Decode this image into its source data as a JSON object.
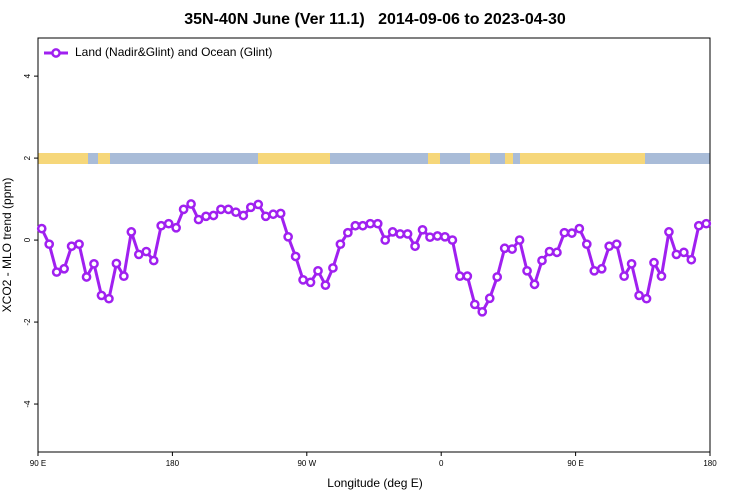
{
  "chart_data": {
    "type": "line",
    "title": "35N-40N June (Ver 11.1)   2014-09-06 to 2023-04-30",
    "x_label": "Longitude (deg E)",
    "y_label": "XCO2 - MLO trend (ppm)",
    "legend": "top-left",
    "xlim": [
      90,
      540
    ],
    "ylim": [
      -5.17,
      4.93
    ],
    "xticks": [
      {
        "value": 90,
        "label": "90 E"
      },
      180,
      {
        "value": 270,
        "label": "90 W"
      },
      {
        "value": 360,
        "label": "0"
      },
      {
        "value": 450,
        "label": "90 E"
      },
      {
        "value": 540,
        "label": "180"
      }
    ],
    "yticks": [
      -4,
      -2,
      0,
      2,
      4
    ],
    "x": [
      92.5,
      97.5,
      102.5,
      107.5,
      112.5,
      117.5,
      122.5,
      127.5,
      132.5,
      137.5,
      142.5,
      147.5,
      152.5,
      157.5,
      162.5,
      167.5,
      172.5,
      177.5,
      182.5,
      187.5,
      192.5,
      197.5,
      202.5,
      207.5,
      212.5,
      217.5,
      222.5,
      227.5,
      232.5,
      237.5,
      242.5,
      247.5,
      252.5,
      257.5,
      262.5,
      267.5,
      272.5,
      277.5,
      282.5,
      287.5,
      292.5,
      297.5,
      302.5,
      307.5,
      312.5,
      317.5,
      322.5,
      327.5,
      332.5,
      337.5,
      342.5,
      347.5,
      352.5,
      357.5,
      362.5,
      367.5,
      372.5,
      377.5,
      382.5,
      387.5,
      392.5,
      397.5,
      402.5,
      407.5,
      412.5,
      417.5,
      422.5,
      427.5,
      432.5,
      437.5,
      442.5,
      447.5,
      452.5,
      457.5,
      462.5,
      467.5,
      472.5,
      477.5,
      482.5,
      487.5,
      492.5,
      497.5,
      502.5,
      507.5,
      512.5,
      517.5,
      522.5,
      527.5,
      532.5,
      537.5
    ],
    "series": [
      {
        "name": "Land (Nadir&Glint) and Ocean (Glint)",
        "color": "#a020f0",
        "values": [
          0.28,
          -0.1,
          -0.78,
          -0.7,
          -0.15,
          -0.1,
          -0.9,
          -0.58,
          -1.35,
          -1.43,
          -0.57,
          -0.88,
          0.2,
          -0.35,
          -0.28,
          -0.5,
          0.35,
          0.4,
          0.3,
          0.75,
          0.88,
          0.5,
          0.58,
          0.6,
          0.75,
          0.75,
          0.68,
          0.6,
          0.8,
          0.87,
          0.58,
          0.63,
          0.65,
          0.08,
          -0.4,
          -0.97,
          -1.03,
          -0.75,
          -1.1,
          -0.68,
          -0.1,
          0.18,
          0.35,
          0.35,
          0.4,
          0.4,
          0.0,
          0.2,
          0.15,
          0.15,
          -0.15,
          0.25,
          0.07,
          0.1,
          0.08,
          0.0,
          -0.88,
          -0.88,
          -1.57,
          -1.75,
          -1.42,
          -0.9,
          -0.2,
          -0.22,
          0.0,
          -0.75,
          -1.08,
          -0.5,
          -0.28,
          -0.3,
          0.18,
          0.17,
          0.28,
          -0.1,
          -0.75,
          -0.7,
          -0.15,
          -0.1,
          -0.88,
          -0.58,
          -1.35,
          -1.43,
          -0.55,
          -0.88,
          0.2,
          -0.35,
          -0.3,
          -0.48,
          0.35,
          0.4
        ]
      }
    ]
  }
}
